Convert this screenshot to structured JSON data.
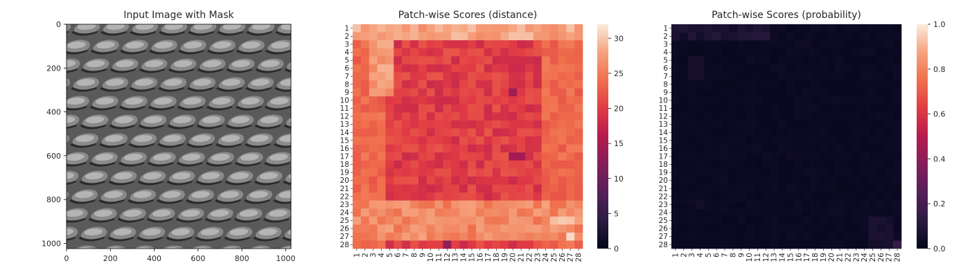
{
  "chart_data": [
    {
      "type": "image",
      "title": "Input Image with Mask",
      "xlim": [
        0,
        1024
      ],
      "ylim": [
        1024,
        0
      ],
      "xticks": [
        "0",
        "200",
        "400",
        "600",
        "800",
        "1000"
      ],
      "yticks": [
        "0",
        "200",
        "400",
        "600",
        "800",
        "1000"
      ],
      "xtick_values": [
        0,
        200,
        400,
        600,
        800,
        1000
      ],
      "ytick_values": [
        0,
        200,
        400,
        600,
        800,
        1000
      ],
      "content": "grayscale metal grid texture"
    },
    {
      "type": "heatmap",
      "title": "Patch-wise Scores (distance)",
      "rows": 28,
      "cols": 28,
      "xticks": [
        "1",
        "2",
        "3",
        "4",
        "5",
        "6",
        "7",
        "8",
        "9",
        "10",
        "11",
        "12",
        "13",
        "14",
        "15",
        "16",
        "17",
        "18",
        "19",
        "20",
        "21",
        "22",
        "23",
        "24",
        "25",
        "26",
        "27",
        "28"
      ],
      "yticks": [
        "1",
        "2",
        "3",
        "4",
        "5",
        "6",
        "7",
        "8",
        "9",
        "10",
        "11",
        "12",
        "13",
        "14",
        "15",
        "16",
        "17",
        "18",
        "19",
        "20",
        "21",
        "22",
        "23",
        "24",
        "25",
        "26",
        "27",
        "28"
      ],
      "colorbar_ticks": [
        "0",
        "5",
        "10",
        "15",
        "20",
        "25",
        "30"
      ],
      "colorbar_tick_values": [
        0,
        5,
        10,
        15,
        20,
        25,
        30
      ],
      "vmin": 0,
      "vmax": 32,
      "colormap": "rocket",
      "values_description": "outer border rows/cols ~24-30, interior ~18-22"
    },
    {
      "type": "heatmap",
      "title": "Patch-wise Scores (probability)",
      "rows": 28,
      "cols": 28,
      "xticks": [
        "1",
        "2",
        "3",
        "4",
        "5",
        "6",
        "7",
        "8",
        "9",
        "10",
        "11",
        "12",
        "13",
        "14",
        "15",
        "16",
        "17",
        "18",
        "19",
        "20",
        "21",
        "22",
        "23",
        "24",
        "25",
        "26",
        "27",
        "28"
      ],
      "yticks": [
        "1",
        "2",
        "3",
        "4",
        "5",
        "6",
        "7",
        "8",
        "9",
        "10",
        "11",
        "12",
        "13",
        "14",
        "15",
        "16",
        "17",
        "18",
        "19",
        "20",
        "21",
        "22",
        "23",
        "24",
        "25",
        "26",
        "27",
        "28"
      ],
      "colorbar_ticks": [
        "0.0",
        "0.2",
        "0.4",
        "0.6",
        "0.8",
        "1.0"
      ],
      "colorbar_tick_values": [
        0.0,
        0.2,
        0.4,
        0.6,
        0.8,
        1.0
      ],
      "vmin": 0,
      "vmax": 1,
      "colormap": "rocket",
      "values_description": "almost all cells near 0.0, a few faint cells near top-left and bottom-right"
    }
  ]
}
